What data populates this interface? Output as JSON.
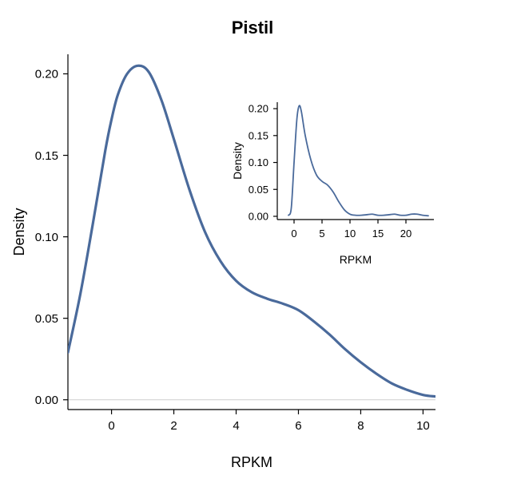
{
  "chart_data": [
    {
      "type": "line",
      "role": "main",
      "title": "Pistil",
      "xlabel": "RPKM",
      "ylabel": "Density",
      "xlim": [
        -1.4,
        10.4
      ],
      "ylim": [
        -0.006,
        0.212
      ],
      "x_ticks": [
        0,
        2,
        4,
        6,
        8,
        10
      ],
      "y_ticks": [
        0.0,
        0.05,
        0.1,
        0.15,
        0.2
      ],
      "x_tick_labels": [
        "0",
        "2",
        "4",
        "6",
        "8",
        "10"
      ],
      "y_tick_labels": [
        "0.00",
        "0.05",
        "0.10",
        "0.15",
        "0.20"
      ],
      "line_color": "#4a6a9b",
      "reference_line_y": 0,
      "series": [
        {
          "x": [
            -1.4,
            -1.0,
            -0.6,
            -0.2,
            0.0,
            0.2,
            0.5,
            0.85,
            1.2,
            1.6,
            2.0,
            2.5,
            3.0,
            3.5,
            4.0,
            4.5,
            5.0,
            5.5,
            6.0,
            6.5,
            7.0,
            7.5,
            8.0,
            8.5,
            9.0,
            9.5,
            10.0,
            10.4
          ],
          "values": [
            0.029,
            0.065,
            0.108,
            0.153,
            0.172,
            0.187,
            0.2,
            0.205,
            0.201,
            0.184,
            0.16,
            0.129,
            0.103,
            0.085,
            0.073,
            0.066,
            0.062,
            0.059,
            0.055,
            0.048,
            0.04,
            0.031,
            0.023,
            0.016,
            0.01,
            0.006,
            0.003,
            0.002
          ]
        }
      ]
    },
    {
      "type": "line",
      "role": "inset",
      "title": "",
      "xlabel": "RPKM",
      "ylabel": "Density",
      "xlim": [
        -3,
        25
      ],
      "ylim": [
        -0.006,
        0.212
      ],
      "x_ticks": [
        0,
        5,
        10,
        15,
        20
      ],
      "y_ticks": [
        0.0,
        0.05,
        0.1,
        0.15,
        0.2
      ],
      "x_tick_labels": [
        "0",
        "5",
        "10",
        "15",
        "20"
      ],
      "y_tick_labels": [
        "0.00",
        "0.05",
        "0.10",
        "0.15",
        "0.20"
      ],
      "line_color": "#4a6a9b",
      "series": [
        {
          "x": [
            -1.0,
            -0.5,
            0.0,
            0.5,
            0.9,
            1.3,
            2.0,
            3.0,
            4.0,
            5.0,
            6.0,
            7.0,
            8.0,
            9.0,
            10.0,
            11.0,
            12.0,
            13.0,
            14.0,
            15.0,
            16.0,
            17.0,
            18.0,
            19.0,
            20.0,
            21.0,
            22.0,
            23.0,
            24.0
          ],
          "values": [
            0.002,
            0.015,
            0.1,
            0.18,
            0.205,
            0.195,
            0.15,
            0.105,
            0.077,
            0.065,
            0.058,
            0.045,
            0.027,
            0.012,
            0.004,
            0.002,
            0.002,
            0.003,
            0.004,
            0.002,
            0.002,
            0.003,
            0.004,
            0.002,
            0.002,
            0.004,
            0.004,
            0.002,
            0.001
          ]
        }
      ]
    }
  ]
}
